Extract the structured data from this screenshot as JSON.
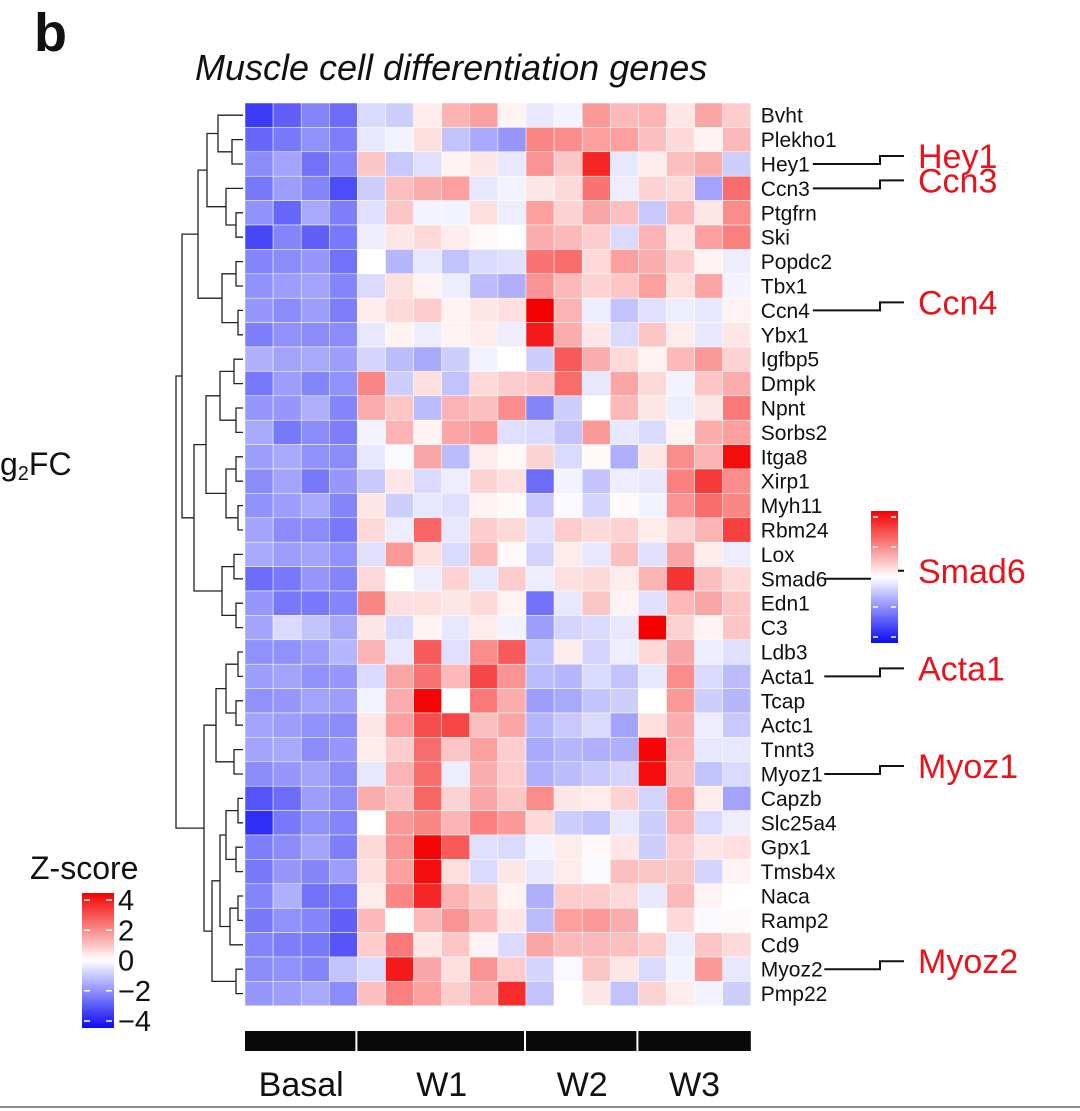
{
  "panel": {
    "letter": "b",
    "title": "Muscle cell differentiation genes",
    "cut_label_prefix": "g",
    "cut_label_sub": "2",
    "cut_label_suffix": "FC"
  },
  "chart_data": {
    "type": "heatmap",
    "title": "Muscle cell differentiation genes",
    "value_label": "Z-score",
    "color_scale": {
      "min": -4,
      "max": 4,
      "low": "#0a0af5",
      "mid": "#ffffff",
      "high": "#f40000",
      "ticks": [
        "4",
        "2",
        "0",
        "−2",
        "−4"
      ]
    },
    "groups": [
      {
        "label": "Basal",
        "n": 4
      },
      {
        "label": "W1",
        "n": 6
      },
      {
        "label": "W2",
        "n": 4
      },
      {
        "label": "W3",
        "n": 4
      }
    ],
    "rows": [
      "Bvht",
      "Plekho1",
      "Hey1",
      "Ccn3",
      "Ptgfrn",
      "Ski",
      "Popdc2",
      "Tbx1",
      "Ccn4",
      "Ybx1",
      "Igfbp5",
      "Dmpk",
      "Npnt",
      "Sorbs2",
      "Itga8",
      "Xirp1",
      "Myh11",
      "Rbm24",
      "Lox",
      "Smad6",
      "Edn1",
      "C3",
      "Ldb3",
      "Acta1",
      "Tcap",
      "Actc1",
      "Tnnt3",
      "Myoz1",
      "Capzb",
      "Slc25a4",
      "Gpx1",
      "Tmsb4x",
      "Naca",
      "Ramp2",
      "Cd9",
      "Myoz2",
      "Pmp22"
    ],
    "highlighted_genes": [
      {
        "gene": "Hey1",
        "label": "Hey1"
      },
      {
        "gene": "Ccn3",
        "label": "Ccn3"
      },
      {
        "gene": "Ccn4",
        "label": "Ccn4"
      },
      {
        "gene": "Smad6",
        "label": "Smad6"
      },
      {
        "gene": "Acta1",
        "label": "Acta1"
      },
      {
        "gene": "Myoz1",
        "label": "Myoz1"
      },
      {
        "gene": "Myoz2",
        "label": "Myoz2"
      }
    ],
    "values": [
      [
        -3.2,
        -2.6,
        -2.0,
        -2.4,
        -0.6,
        -0.8,
        0.3,
        1.2,
        1.5,
        0.2,
        -0.4,
        -0.2,
        1.6,
        1.1,
        1.2,
        0.4,
        1.4,
        0.8
      ],
      [
        -2.5,
        -2.2,
        -1.8,
        -2.1,
        -0.4,
        -0.2,
        0.5,
        -1.0,
        -1.4,
        -1.7,
        1.9,
        1.8,
        1.5,
        1.5,
        1.0,
        0.6,
        0.2,
        1.1
      ],
      [
        -1.9,
        -1.5,
        -2.3,
        -2.0,
        0.9,
        -0.9,
        -0.5,
        0.2,
        0.4,
        -0.4,
        1.7,
        0.9,
        3.4,
        -0.4,
        0.3,
        1.0,
        1.3,
        -0.8
      ],
      [
        -2.2,
        -1.6,
        -2.0,
        -2.9,
        -0.8,
        1.0,
        1.3,
        1.5,
        -0.4,
        -0.2,
        0.4,
        0.6,
        2.2,
        -0.3,
        0.7,
        0.6,
        -1.5,
        2.3
      ],
      [
        -1.8,
        -2.5,
        -1.4,
        -2.1,
        -0.5,
        0.9,
        -0.2,
        -0.2,
        0.5,
        -0.3,
        1.5,
        0.7,
        1.4,
        1.0,
        -0.9,
        1.1,
        0.4,
        1.8
      ],
      [
        -3.0,
        -2.0,
        -2.6,
        -2.2,
        -0.3,
        0.4,
        0.6,
        0.3,
        0.1,
        0.0,
        1.3,
        1.1,
        0.8,
        -0.6,
        1.2,
        0.4,
        1.5,
        2.0
      ],
      [
        -2.0,
        -1.9,
        -1.7,
        -2.3,
        0.0,
        -1.2,
        -0.4,
        -1.0,
        -0.6,
        -0.5,
        2.2,
        2.3,
        0.6,
        1.5,
        1.3,
        0.8,
        0.2,
        -0.3
      ],
      [
        -1.8,
        -1.6,
        -1.5,
        -2.0,
        -0.6,
        0.5,
        0.2,
        -0.3,
        -1.1,
        -1.3,
        1.7,
        1.1,
        0.7,
        0.9,
        1.5,
        0.5,
        1.4,
        -0.2
      ],
      [
        -1.7,
        -1.9,
        -1.6,
        -2.1,
        0.3,
        0.6,
        0.8,
        0.2,
        0.4,
        0.5,
        4.0,
        1.2,
        -0.3,
        -1.0,
        -0.5,
        -0.3,
        -0.4,
        0.2
      ],
      [
        -2.1,
        -1.8,
        -1.9,
        -1.9,
        -0.4,
        0.2,
        -0.3,
        0.2,
        0.3,
        -0.3,
        3.6,
        1.3,
        0.4,
        -0.6,
        0.9,
        0.3,
        -0.4,
        0.4
      ],
      [
        -1.3,
        -1.5,
        -1.4,
        -1.6,
        -0.7,
        -1.1,
        -1.4,
        -0.8,
        -0.2,
        0.0,
        -0.8,
        2.6,
        1.3,
        0.6,
        0.2,
        1.1,
        1.6,
        0.7
      ],
      [
        -2.2,
        -1.6,
        -2.0,
        -1.8,
        1.9,
        -0.8,
        0.5,
        -1.0,
        0.6,
        0.8,
        0.9,
        2.3,
        -0.4,
        1.4,
        0.6,
        -0.2,
        0.9,
        1.3
      ],
      [
        -1.7,
        -1.7,
        -1.3,
        -2.0,
        1.3,
        0.9,
        -1.1,
        1.2,
        1.0,
        1.8,
        -2.0,
        -0.8,
        0.0,
        1.1,
        0.4,
        -0.3,
        0.4,
        2.1
      ],
      [
        -1.4,
        -2.2,
        -1.9,
        -2.1,
        -0.2,
        1.2,
        0.2,
        1.4,
        1.6,
        -0.5,
        -0.6,
        -1.0,
        1.6,
        -0.4,
        -0.6,
        0.2,
        1.3,
        1.5
      ],
      [
        -1.6,
        -1.4,
        -1.8,
        -1.9,
        -0.4,
        -0.1,
        1.4,
        -1.1,
        0.3,
        0.1,
        0.7,
        -0.6,
        0.1,
        -1.3,
        0.4,
        1.8,
        1.2,
        3.8
      ],
      [
        -1.9,
        -1.5,
        -2.2,
        -1.7,
        -0.9,
        0.4,
        -0.6,
        -0.3,
        0.7,
        0.5,
        -2.4,
        -0.2,
        -1.0,
        -0.3,
        -0.4,
        2.0,
        3.1,
        1.8
      ],
      [
        -1.8,
        -1.6,
        -1.4,
        -2.0,
        0.4,
        -0.8,
        -0.4,
        -0.5,
        0.2,
        0.1,
        -0.9,
        -0.1,
        -0.7,
        0.1,
        -0.2,
        1.7,
        2.3,
        1.9
      ],
      [
        -1.5,
        -1.9,
        -1.9,
        -2.2,
        0.6,
        -0.3,
        2.4,
        -0.4,
        0.8,
        0.6,
        -0.5,
        0.8,
        0.6,
        0.7,
        0.3,
        0.7,
        1.2,
        3.0
      ],
      [
        -1.4,
        -1.6,
        -1.5,
        -1.8,
        -0.5,
        1.6,
        0.5,
        -0.6,
        1.1,
        0.1,
        -0.7,
        0.3,
        -0.4,
        1.0,
        -0.5,
        1.4,
        0.3,
        -0.3
      ],
      [
        -2.4,
        -2.2,
        -1.7,
        -2.0,
        0.6,
        0.0,
        -0.3,
        0.7,
        -0.4,
        0.8,
        -0.3,
        0.5,
        0.6,
        0.3,
        1.2,
        3.2,
        1.0,
        0.6
      ],
      [
        -1.7,
        -2.2,
        -2.2,
        -2.0,
        1.9,
        0.5,
        0.5,
        0.4,
        0.6,
        0.2,
        -2.3,
        -0.4,
        0.9,
        0.2,
        -0.5,
        1.1,
        1.4,
        0.9
      ],
      [
        -1.5,
        -0.6,
        -1.0,
        -1.4,
        0.4,
        -0.6,
        0.2,
        -0.4,
        0.3,
        -0.2,
        -1.6,
        -0.7,
        -0.6,
        -0.4,
        4.0,
        0.7,
        0.2,
        0.9
      ],
      [
        -1.8,
        -1.8,
        -1.6,
        -1.2,
        1.2,
        -0.4,
        2.6,
        -0.5,
        1.8,
        2.6,
        -1.0,
        0.3,
        -0.7,
        -0.3,
        0.6,
        1.4,
        -0.3,
        -0.5
      ],
      [
        -1.6,
        -1.5,
        -1.8,
        -1.7,
        -0.6,
        1.4,
        2.2,
        1.1,
        2.9,
        1.7,
        -1.1,
        -1.2,
        -0.6,
        -1.0,
        -0.4,
        1.8,
        -0.6,
        -1.1
      ],
      [
        -1.8,
        -1.7,
        -1.5,
        -1.6,
        -0.2,
        1.3,
        3.9,
        0.0,
        2.1,
        1.3,
        -1.6,
        -1.4,
        -1.0,
        -0.8,
        0.0,
        1.6,
        -0.8,
        -1.2
      ],
      [
        -1.5,
        -1.6,
        -1.8,
        -1.9,
        0.4,
        1.5,
        2.8,
        2.9,
        1.0,
        1.4,
        -1.2,
        -0.9,
        -0.6,
        -1.5,
        0.5,
        1.3,
        -0.3,
        -0.9
      ],
      [
        -1.5,
        -1.4,
        -1.9,
        -1.7,
        0.3,
        0.8,
        2.3,
        0.9,
        1.5,
        0.8,
        -1.4,
        -1.2,
        -1.3,
        -1.3,
        3.9,
        1.2,
        -0.4,
        -0.4
      ],
      [
        -1.9,
        -1.7,
        -1.5,
        -1.9,
        -0.4,
        1.2,
        2.3,
        -0.3,
        1.3,
        0.8,
        -1.3,
        -1.1,
        -0.9,
        -0.7,
        3.8,
        1.0,
        -1.0,
        -0.6
      ],
      [
        -2.8,
        -2.4,
        -1.6,
        -1.9,
        1.3,
        1.0,
        2.4,
        0.7,
        1.4,
        0.9,
        1.8,
        0.4,
        0.3,
        0.7,
        -0.7,
        1.5,
        0.3,
        -1.5
      ],
      [
        -3.4,
        -2.2,
        -1.8,
        -2.0,
        0.0,
        1.6,
        1.9,
        1.2,
        2.0,
        1.6,
        0.6,
        -0.8,
        -1.0,
        -0.4,
        -0.8,
        1.2,
        -0.6,
        -0.3
      ],
      [
        -2.1,
        -1.9,
        -1.5,
        -2.1,
        0.6,
        1.7,
        3.9,
        2.6,
        -0.5,
        -0.6,
        -0.2,
        0.3,
        0.1,
        0.4,
        -0.8,
        0.8,
        0.4,
        0.5
      ],
      [
        -2.2,
        -1.7,
        -2.0,
        -1.6,
        0.5,
        1.5,
        3.8,
        0.5,
        -0.6,
        0.4,
        -0.4,
        0.3,
        -0.1,
        1.0,
        0.9,
        0.9,
        -0.7,
        0.2
      ],
      [
        -2.0,
        -1.3,
        -2.3,
        -2.3,
        0.3,
        1.9,
        3.4,
        1.2,
        0.8,
        0.2,
        -1.3,
        0.8,
        0.8,
        0.6,
        -0.4,
        1.1,
        0.2,
        0.0
      ],
      [
        -2.2,
        -1.8,
        -2.0,
        -2.6,
        1.1,
        0.0,
        1.1,
        1.7,
        1.1,
        0.4,
        -1.1,
        1.5,
        1.6,
        1.3,
        0.0,
        0.6,
        -0.1,
        0.1
      ],
      [
        -2.0,
        -2.1,
        -2.2,
        -2.8,
        0.8,
        2.1,
        0.4,
        0.9,
        0.2,
        -0.6,
        1.4,
        1.1,
        1.1,
        1.0,
        0.8,
        -0.3,
        0.9,
        0.6
      ],
      [
        -1.9,
        -1.8,
        -2.0,
        -1.0,
        -0.6,
        3.6,
        1.4,
        0.5,
        1.7,
        0.8,
        -0.7,
        -0.1,
        0.9,
        0.4,
        -0.6,
        -0.2,
        1.6,
        -0.4
      ],
      [
        -1.7,
        -1.6,
        -1.4,
        -1.9,
        1.0,
        2.0,
        1.5,
        0.8,
        1.3,
        3.3,
        -1.0,
        0.0,
        0.4,
        -1.0,
        0.7,
        0.3,
        -0.2,
        -0.8
      ]
    ]
  }
}
